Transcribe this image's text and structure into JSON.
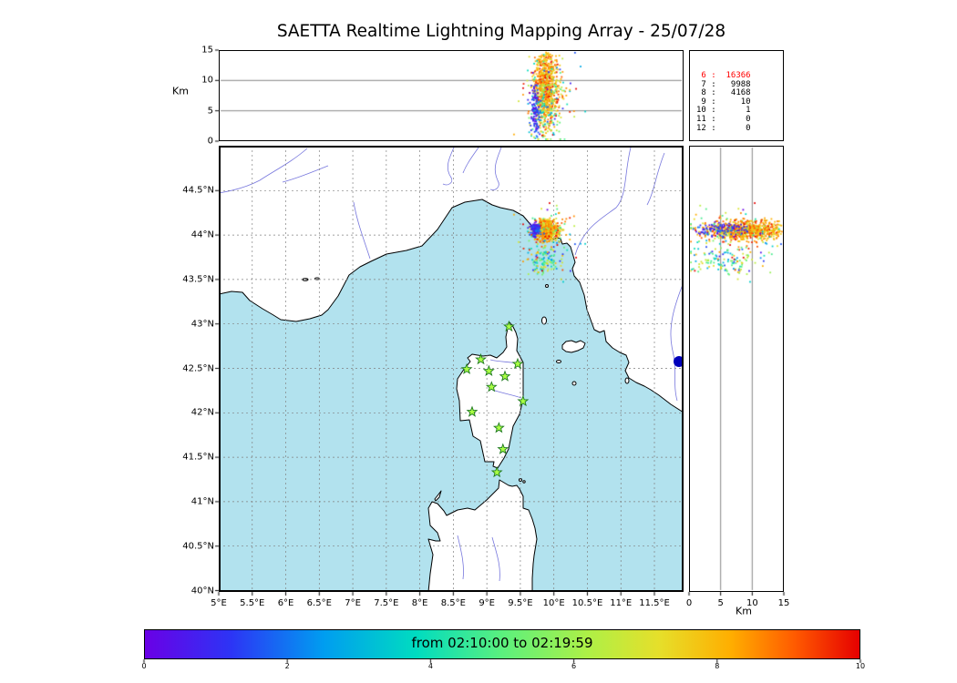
{
  "title": "SAETTA Realtime Lightning Mapping Array - 25/07/28",
  "axes": {
    "km_label_left": "Km",
    "km_label_bottom": "Km",
    "lon_ticks": [
      {
        "value": 5,
        "label": "5°E"
      },
      {
        "value": 5.5,
        "label": "5.5°E"
      },
      {
        "value": 6,
        "label": "6°E"
      },
      {
        "value": 6.5,
        "label": "6.5°E"
      },
      {
        "value": 7,
        "label": "7°E"
      },
      {
        "value": 7.5,
        "label": "7.5°E"
      },
      {
        "value": 8,
        "label": "8°E"
      },
      {
        "value": 8.5,
        "label": "8.5°E"
      },
      {
        "value": 9,
        "label": "9°E"
      },
      {
        "value": 9.5,
        "label": "9.5°E"
      },
      {
        "value": 10,
        "label": "10°E"
      },
      {
        "value": 10.5,
        "label": "10.5°E"
      },
      {
        "value": 11,
        "label": "11°E"
      },
      {
        "value": 11.5,
        "label": "11.5°E"
      }
    ],
    "lat_ticks": [
      {
        "value": 44.5,
        "label": "44.5°N"
      },
      {
        "value": 44,
        "label": "44°N"
      },
      {
        "value": 43.5,
        "label": "43.5°N"
      },
      {
        "value": 43,
        "label": "43°N"
      },
      {
        "value": 42.5,
        "label": "42.5°N"
      },
      {
        "value": 42,
        "label": "42°N"
      },
      {
        "value": 41.5,
        "label": "41.5°N"
      },
      {
        "value": 41,
        "label": "41°N"
      },
      {
        "value": 40.5,
        "label": "40.5°N"
      },
      {
        "value": 40,
        "label": "40°N"
      }
    ],
    "alt_ticks_left": [
      {
        "value": 0,
        "label": "0"
      },
      {
        "value": 5,
        "label": "5"
      },
      {
        "value": 10,
        "label": "10"
      },
      {
        "value": 15,
        "label": "15"
      }
    ],
    "alt_ticks_bottom": [
      {
        "value": 0,
        "label": "0"
      },
      {
        "value": 5,
        "label": "5"
      },
      {
        "value": 10,
        "label": "10"
      },
      {
        "value": 15,
        "label": "15"
      }
    ]
  },
  "station_stats": {
    "lines": [
      {
        "text": " 6 :  16366",
        "color": "#ff0000"
      },
      {
        "text": " 7 :   9988",
        "color": "#000000"
      },
      {
        "text": " 8 :   4168",
        "color": "#000000"
      },
      {
        "text": " 9 :     10",
        "color": "#000000"
      },
      {
        "text": "10 :      1",
        "color": "#000000"
      },
      {
        "text": "11 :      0",
        "color": "#000000"
      },
      {
        "text": "12 :      0",
        "color": "#000000"
      }
    ]
  },
  "colorbar": {
    "label": "from 02:10:00 to 02:19:59",
    "ticks": [
      0,
      2,
      4,
      6,
      8,
      10
    ],
    "range": [
      0,
      10
    ],
    "colormap": "rainbow",
    "stops": [
      [
        0,
        "#6a00e6"
      ],
      [
        0.12,
        "#2d34f5"
      ],
      [
        0.25,
        "#009df0"
      ],
      [
        0.38,
        "#00dcc0"
      ],
      [
        0.5,
        "#5bf07e"
      ],
      [
        0.62,
        "#aef046"
      ],
      [
        0.72,
        "#e6df2a"
      ],
      [
        0.82,
        "#ffae00"
      ],
      [
        0.91,
        "#ff5a00"
      ],
      [
        1,
        "#e60000"
      ]
    ]
  },
  "chart_data": [
    {
      "type": "scatter",
      "name": "altitude-vs-longitude",
      "ylabel": "Km",
      "xlim": [
        5,
        11.93
      ],
      "ylim": [
        0,
        15
      ],
      "yticks": [
        0,
        5,
        10,
        15
      ],
      "grid": "horizontal lines at 5 and 10 km",
      "description": "Vertical projection of lightning VHF sources: dense column near 9.7-10.0°E spanning 1-14.5 km altitude, colored by time (mostly orange/red = late in window, small blue patch = early)"
    },
    {
      "type": "scatter",
      "name": "plan-view-map",
      "region": "Gulf of Genoa, Corsica, Sardinia, Tyrrhenian coast of Italy",
      "xlim": [
        5,
        11.93
      ],
      "ylim": [
        39.98,
        45.0
      ],
      "xtick_labels": [
        "5°E",
        "5.5°E",
        "6°E",
        "6.5°E",
        "7°E",
        "7.5°E",
        "8°E",
        "8.5°E",
        "9°E",
        "9.5°E",
        "10°E",
        "10.5°E",
        "11°E",
        "11.5°E"
      ],
      "ytick_labels": [
        "44.5°N",
        "44°N",
        "43.5°N",
        "43°N",
        "42.5°N",
        "42°N",
        "41.5°N",
        "41°N",
        "40.5°N",
        "40°N"
      ],
      "stations": [
        [
          9.33,
          42.97
        ],
        [
          8.7,
          42.49
        ],
        [
          9.03,
          42.47
        ],
        [
          9.46,
          42.55
        ],
        [
          9.27,
          42.41
        ],
        [
          9.07,
          42.29
        ],
        [
          9.54,
          42.13
        ],
        [
          8.78,
          42.01
        ],
        [
          9.18,
          41.83
        ],
        [
          9.24,
          41.59
        ],
        [
          9.15,
          41.33
        ],
        [
          8.91,
          42.6
        ]
      ],
      "source_clusters": [
        {
          "n": 750,
          "lon": [
            9.88,
            0.09
          ],
          "lat": [
            44.05,
            0.055
          ],
          "alt": [
            9.0,
            3.2
          ],
          "t": [
            0.82,
            0.1
          ]
        },
        {
          "n": 100,
          "lon": [
            9.85,
            0.12
          ],
          "lat": [
            43.7,
            0.07
          ],
          "alt": [
            5.0,
            3.0
          ],
          "t": [
            0.5,
            0.2
          ]
        },
        {
          "n": 110,
          "lon": [
            9.9,
            0.2
          ],
          "lat": [
            43.98,
            0.17
          ],
          "alt": [
            7.5,
            3.8
          ],
          "t": [
            0.55,
            0.28
          ]
        },
        {
          "n": 110,
          "lon": [
            9.72,
            0.035
          ],
          "lat": [
            44.06,
            0.04
          ],
          "alt": [
            5.0,
            2.2
          ],
          "t": [
            0.1,
            0.07
          ]
        }
      ],
      "alt_clip": [
        0.3,
        14.8
      ],
      "seed": 42,
      "notes": "Lightning storm cell over the Ligurian coast near La Spezia (~9.9°E, 44.05°N); green stars = SAETTA LMA stations on Corsica; dark blue filled circle at right edge = Lake Bolsena"
    },
    {
      "type": "scatter",
      "name": "altitude-vs-latitude",
      "xlabel": "Km",
      "xlim": [
        0,
        15
      ],
      "xticks": [
        0,
        5,
        10,
        15
      ],
      "grid": "vertical lines at 5 and 10 km",
      "description": "Horizontal band of sources at ~44.05°N across 1-14.5 km altitude plus a weaker band near 43.7°N"
    },
    {
      "type": "colorbar",
      "label": "from 02:10:00 to 02:19:59",
      "ticks": [
        0,
        2,
        4,
        6,
        8,
        10
      ],
      "range": [
        0,
        10
      ],
      "colormap": "rainbow"
    }
  ]
}
